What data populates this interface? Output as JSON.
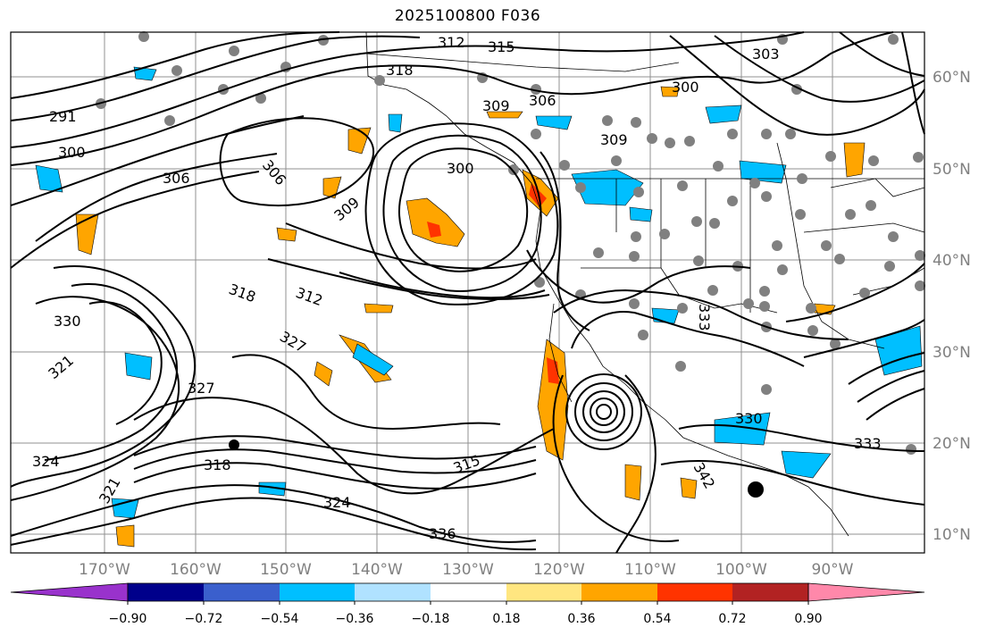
{
  "title": "2025100800 F036",
  "map": {
    "lon_labels": [
      "170°W",
      "160°W",
      "150°W",
      "140°W",
      "130°W",
      "120°W",
      "110°W",
      "100°W",
      "90°W"
    ],
    "lat_labels": [
      "60°N",
      "50°N",
      "40°N",
      "30°N",
      "20°N",
      "10°N"
    ],
    "contour_labels": [
      "291",
      "300",
      "306",
      "309",
      "312",
      "315",
      "318",
      "321",
      "324",
      "327",
      "330",
      "333",
      "336",
      "342",
      "303"
    ],
    "colors": {
      "contour": "#000000",
      "grid": "#909090",
      "station": "#808080"
    }
  },
  "colorbar": {
    "ticks": [
      "−0.90",
      "−0.72",
      "−0.54",
      "−0.36",
      "−0.18",
      "0.18",
      "0.36",
      "0.54",
      "0.72",
      "0.90"
    ],
    "colors": [
      "#9932CC",
      "#00008B",
      "#3A5FCD",
      "#00BFFF",
      "#B0E2FF",
      "#FFFFFF",
      "#FFE680",
      "#FFA500",
      "#FF3300",
      "#B22222",
      "#FF88AA"
    ]
  }
}
